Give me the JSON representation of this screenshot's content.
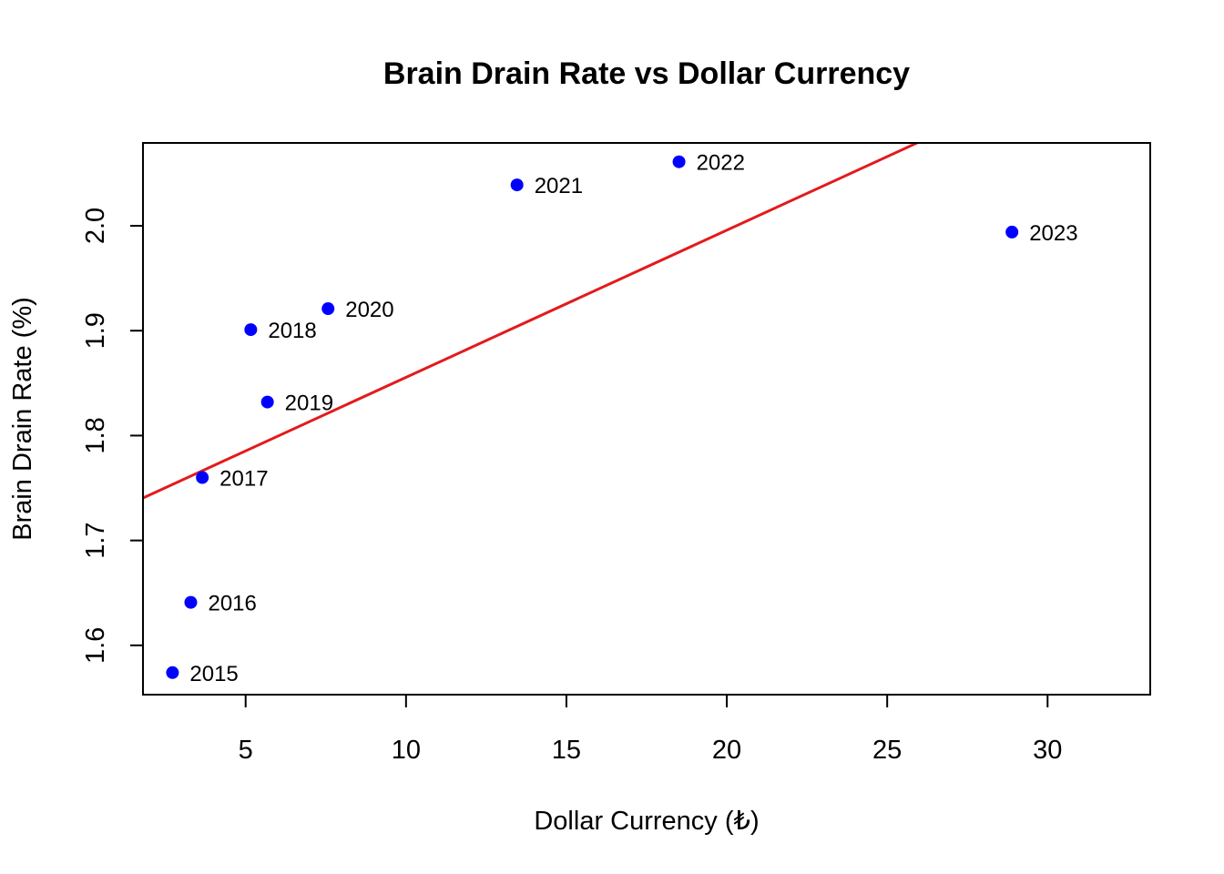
{
  "chart_data": {
    "type": "scatter",
    "title": "Brain Drain Rate vs Dollar Currency",
    "xlabel": "Dollar Currency (₺)",
    "ylabel": "Brain Drain Rate (%)",
    "xlim": [
      1.8,
      33.2
    ],
    "ylim": [
      1.553,
      2.079
    ],
    "xticks": [
      5,
      10,
      15,
      20,
      25,
      30
    ],
    "yticks": [
      1.6,
      1.7,
      1.8,
      1.9,
      2.0
    ],
    "ytick_labels": [
      "1.6",
      "1.7",
      "1.8",
      "1.9",
      "2.0"
    ],
    "grid": false,
    "point_color": "#0000ff",
    "line_color": "#e31a1c",
    "points": [
      {
        "label": "2015",
        "x": 2.72,
        "y": 1.574
      },
      {
        "label": "2016",
        "x": 3.29,
        "y": 1.641
      },
      {
        "label": "2017",
        "x": 3.65,
        "y": 1.76
      },
      {
        "label": "2018",
        "x": 5.16,
        "y": 1.901
      },
      {
        "label": "2019",
        "x": 5.68,
        "y": 1.832
      },
      {
        "label": "2020",
        "x": 7.57,
        "y": 1.921
      },
      {
        "label": "2021",
        "x": 13.46,
        "y": 2.039
      },
      {
        "label": "2022",
        "x": 18.51,
        "y": 2.061
      },
      {
        "label": "2023",
        "x": 28.89,
        "y": 1.994
      }
    ],
    "trendline": {
      "x": [
        1.8,
        25.98
      ],
      "y": [
        1.7405,
        2.0797
      ]
    }
  }
}
